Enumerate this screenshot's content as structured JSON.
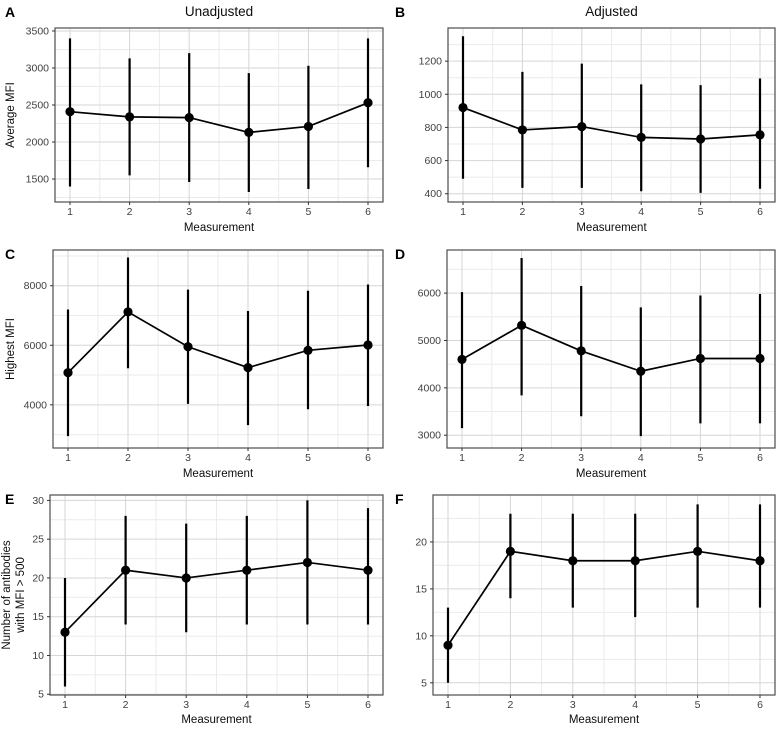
{
  "figure": {
    "column_titles": [
      "Unadjusted",
      "Adjusted"
    ],
    "xlabel": "Measurement",
    "x_categories": [
      "1",
      "2",
      "3",
      "4",
      "5",
      "6"
    ],
    "point_color": "#000000",
    "major_grid_color": "#d6d6d6",
    "minor_grid_color": "#ebebeb",
    "panel_border_color": "#4d4d4d"
  },
  "chart_data": [
    {
      "type": "line",
      "letter": "A",
      "title": "Unadjusted",
      "ylabel_lines": [
        "Average MFI"
      ],
      "xlabel": "Measurement",
      "x": [
        1,
        2,
        3,
        4,
        5,
        6
      ],
      "values": [
        2410,
        2340,
        2330,
        2130,
        2210,
        2530
      ],
      "lower": [
        1400,
        1550,
        1460,
        1325,
        1365,
        1660
      ],
      "upper": [
        3400,
        3130,
        3200,
        2930,
        3030,
        3400
      ],
      "yticks": [
        1500,
        2000,
        2500,
        3000,
        3500
      ],
      "ylim": [
        1190,
        3540
      ],
      "grid": true,
      "legend": "none"
    },
    {
      "type": "line",
      "letter": "B",
      "title": "Adjusted",
      "ylabel_lines": [],
      "xlabel": "Measurement",
      "x": [
        1,
        2,
        3,
        4,
        5,
        6
      ],
      "values": [
        920,
        785,
        805,
        740,
        730,
        755
      ],
      "lower": [
        490,
        435,
        435,
        415,
        405,
        430
      ],
      "upper": [
        1350,
        1135,
        1185,
        1060,
        1055,
        1095
      ],
      "yticks": [
        400,
        600,
        800,
        1000,
        1200
      ],
      "ylim": [
        350,
        1400
      ],
      "grid": true,
      "legend": "none"
    },
    {
      "type": "line",
      "letter": "C",
      "title": "",
      "ylabel_lines": [
        "Highest MFI"
      ],
      "xlabel": "Measurement",
      "x": [
        1,
        2,
        3,
        4,
        5,
        6
      ],
      "values": [
        5080,
        7120,
        5950,
        5250,
        5830,
        6010
      ],
      "lower": [
        2950,
        5230,
        4030,
        3320,
        3850,
        3960
      ],
      "upper": [
        7200,
        8950,
        7870,
        7150,
        7830,
        8040
      ],
      "yticks": [
        4000,
        6000,
        8000
      ],
      "ylim": [
        2550,
        9200
      ],
      "grid": true,
      "legend": "none"
    },
    {
      "type": "line",
      "letter": "D",
      "title": "",
      "ylabel_lines": [],
      "xlabel": "Measurement",
      "x": [
        1,
        2,
        3,
        4,
        5,
        6
      ],
      "values": [
        4600,
        5320,
        4780,
        4350,
        4620,
        4620
      ],
      "lower": [
        3150,
        3840,
        3400,
        2980,
        3250,
        3250
      ],
      "upper": [
        6020,
        6740,
        6150,
        5700,
        5950,
        5980
      ],
      "yticks": [
        3000,
        4000,
        5000,
        6000
      ],
      "ylim": [
        2730,
        6910
      ],
      "grid": true,
      "legend": "none"
    },
    {
      "type": "line",
      "letter": "E",
      "title": "",
      "ylabel_lines": [
        "Number of antibodies",
        "with MFI > 500"
      ],
      "xlabel": "Measurement",
      "x": [
        1,
        2,
        3,
        4,
        5,
        6
      ],
      "values": [
        13,
        21,
        20,
        21,
        22,
        21
      ],
      "lower": [
        6,
        14,
        13,
        14,
        14,
        14
      ],
      "upper": [
        20,
        28,
        27,
        28,
        30,
        29
      ],
      "yticks": [
        5,
        10,
        15,
        20,
        25,
        30
      ],
      "ylim": [
        4.9,
        30.7
      ],
      "grid": true,
      "legend": "none"
    },
    {
      "type": "line",
      "letter": "F",
      "title": "",
      "ylabel_lines": [],
      "xlabel": "Measurement",
      "x": [
        1,
        2,
        3,
        4,
        5,
        6
      ],
      "values": [
        9,
        19,
        18,
        18,
        19,
        18
      ],
      "lower": [
        5,
        14,
        13,
        12,
        13,
        13
      ],
      "upper": [
        13,
        23,
        23,
        23,
        24,
        24
      ],
      "yticks": [
        5,
        10,
        15,
        20
      ],
      "ylim": [
        3.7,
        25
      ],
      "grid": true,
      "legend": "none"
    }
  ]
}
